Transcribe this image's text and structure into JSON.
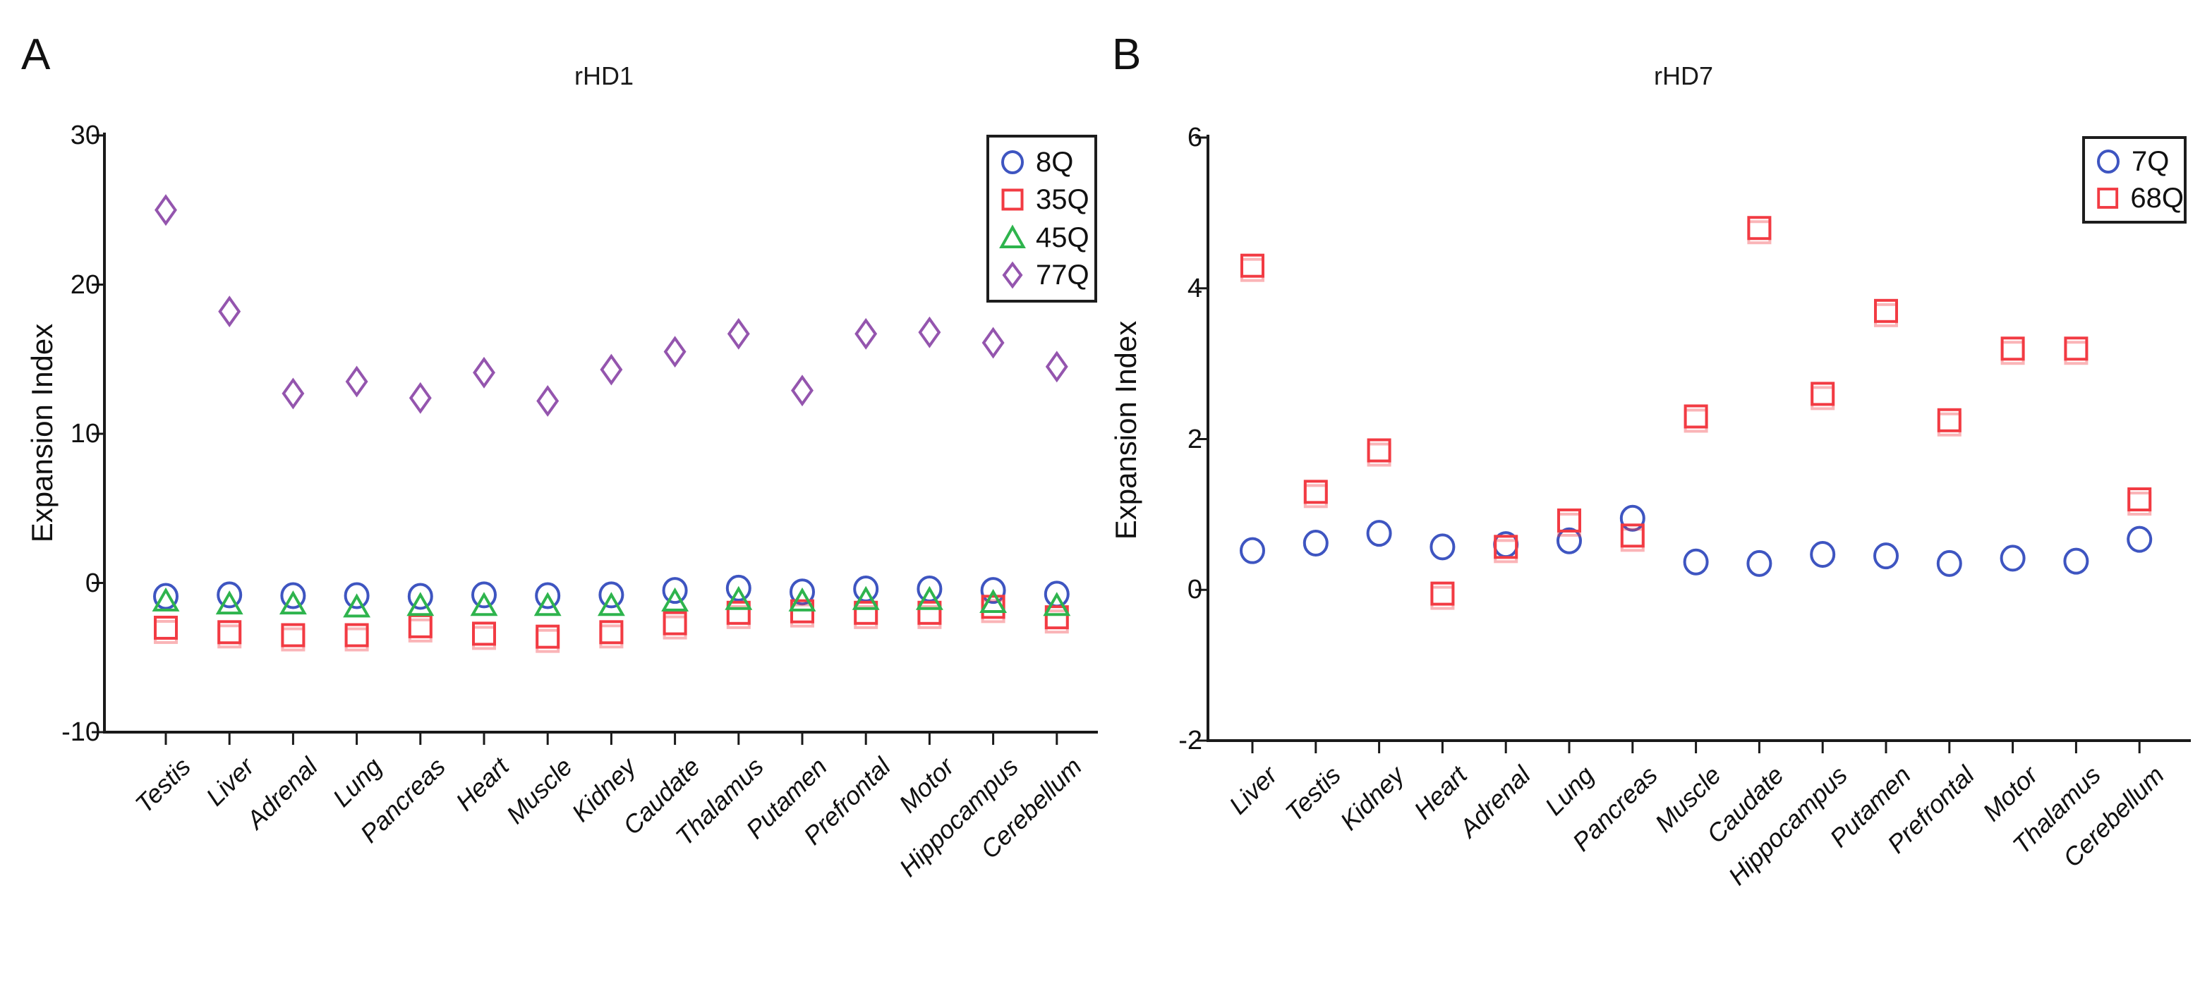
{
  "chart_data": [
    {
      "type": "scatter",
      "panel": "A",
      "title": "rHD1",
      "ylabel": "Expansion Index",
      "ylim": [
        -10,
        30
      ],
      "yticks": [
        30,
        20,
        10,
        0,
        -10
      ],
      "grid": false,
      "legend_position": "top-right",
      "categories": [
        "Testis",
        "Liver",
        "Adrenal",
        "Lung",
        "Pancreas",
        "Heart",
        "Muscle",
        "Kidney",
        "Caudate",
        "Thalamus",
        "Putamen",
        "Prefrontal",
        "Motor",
        "Hippocampus",
        "Cerebellum"
      ],
      "series": [
        {
          "name": "8Q",
          "marker": "circle",
          "color": "#3E55C1",
          "values": [
            -0.9,
            -0.8,
            -0.85,
            -0.85,
            -0.9,
            -0.8,
            -0.85,
            -0.8,
            -0.5,
            -0.35,
            -0.6,
            -0.4,
            -0.4,
            -0.5,
            -0.75
          ]
        },
        {
          "name": "35Q",
          "marker": "square",
          "color": "#F23B43",
          "values": [
            -3.0,
            -3.3,
            -3.5,
            -3.5,
            -2.9,
            -3.4,
            -3.6,
            -3.3,
            -2.7,
            -2.0,
            -1.9,
            -2.0,
            -2.0,
            -1.6,
            -2.3
          ]
        },
        {
          "name": "45Q",
          "marker": "triangle",
          "color": "#2EB44D",
          "values": [
            -1.2,
            -1.4,
            -1.4,
            -1.6,
            -1.5,
            -1.5,
            -1.5,
            -1.5,
            -1.2,
            -1.1,
            -1.2,
            -1.1,
            -1.1,
            -1.3,
            -1.5
          ]
        },
        {
          "name": "77Q",
          "marker": "diamond",
          "color": "#9455AE",
          "values": [
            25.0,
            18.2,
            12.7,
            13.5,
            12.4,
            14.1,
            12.2,
            14.3,
            15.5,
            16.7,
            12.9,
            16.7,
            16.8,
            16.1,
            14.5
          ]
        }
      ]
    },
    {
      "type": "scatter",
      "panel": "B",
      "title": "rHD7",
      "ylabel": "Expansion Index",
      "ylim": [
        -2,
        6
      ],
      "yticks": [
        6,
        4,
        2,
        0,
        -2
      ],
      "grid": false,
      "legend_position": "top-right",
      "categories": [
        "Liver",
        "Testis",
        "Kidney",
        "Heart",
        "Adrenal",
        "Lung",
        "Pancreas",
        "Muscle",
        "Caudate",
        "Hippocampus",
        "Putamen",
        "Prefrontal",
        "Motor",
        "Thalamus",
        "Cerebellum"
      ],
      "series": [
        {
          "name": "7Q",
          "marker": "circle",
          "color": "#3E55C1",
          "values": [
            0.52,
            0.62,
            0.75,
            0.57,
            0.6,
            0.65,
            0.95,
            0.37,
            0.35,
            0.47,
            0.45,
            0.35,
            0.42,
            0.38,
            0.67
          ]
        },
        {
          "name": "68Q",
          "marker": "square",
          "color": "#F23B43",
          "values": [
            4.3,
            1.3,
            1.85,
            -0.05,
            0.57,
            0.92,
            0.72,
            2.3,
            4.8,
            2.6,
            3.7,
            2.25,
            3.2,
            3.2,
            1.2
          ]
        }
      ]
    }
  ],
  "style": {
    "axis_color": "#1a1a1a",
    "background": "#ffffff"
  }
}
